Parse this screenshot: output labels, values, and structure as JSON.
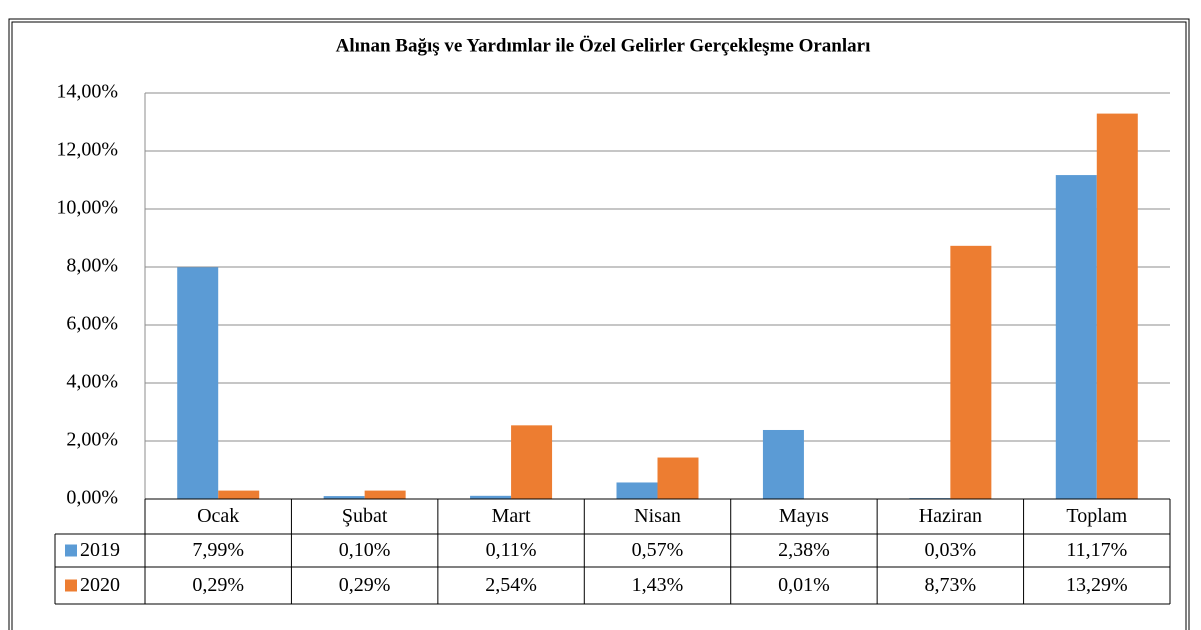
{
  "chart_data": {
    "type": "bar",
    "title": "Alınan Bağış ve Yardımlar ile Özel Gelirler Gerçekleşme Oranları",
    "categories": [
      "Ocak",
      "Şubat",
      "Mart",
      "Nisan",
      "Mayıs",
      "Haziran",
      "Toplam"
    ],
    "series": [
      {
        "name": "2019",
        "color": "#5b9bd5",
        "values": [
          7.99,
          0.1,
          0.11,
          0.57,
          2.38,
          0.03,
          11.17
        ],
        "value_labels": [
          "7,99%",
          "0,10%",
          "0,11%",
          "0,57%",
          "2,38%",
          "0,03%",
          "11,17%"
        ]
      },
      {
        "name": "2020",
        "color": "#ed7d31",
        "values": [
          0.29,
          0.29,
          2.54,
          1.43,
          0.01,
          8.73,
          13.29
        ],
        "value_labels": [
          "0,29%",
          "0,29%",
          "2,54%",
          "1,43%",
          "0,01%",
          "8,73%",
          "13,29%"
        ]
      }
    ],
    "ylim": [
      0,
      14
    ],
    "yticks": [
      {
        "value": 0,
        "label": "0,00%"
      },
      {
        "value": 2,
        "label": "2,00%"
      },
      {
        "value": 4,
        "label": "4,00%"
      },
      {
        "value": 6,
        "label": "6,00%"
      },
      {
        "value": 8,
        "label": "8,00%"
      },
      {
        "value": 10,
        "label": "10,00%"
      },
      {
        "value": 12,
        "label": "12,00%"
      },
      {
        "value": 14,
        "label": "14,00%"
      }
    ],
    "grid": true,
    "legend": "table"
  }
}
